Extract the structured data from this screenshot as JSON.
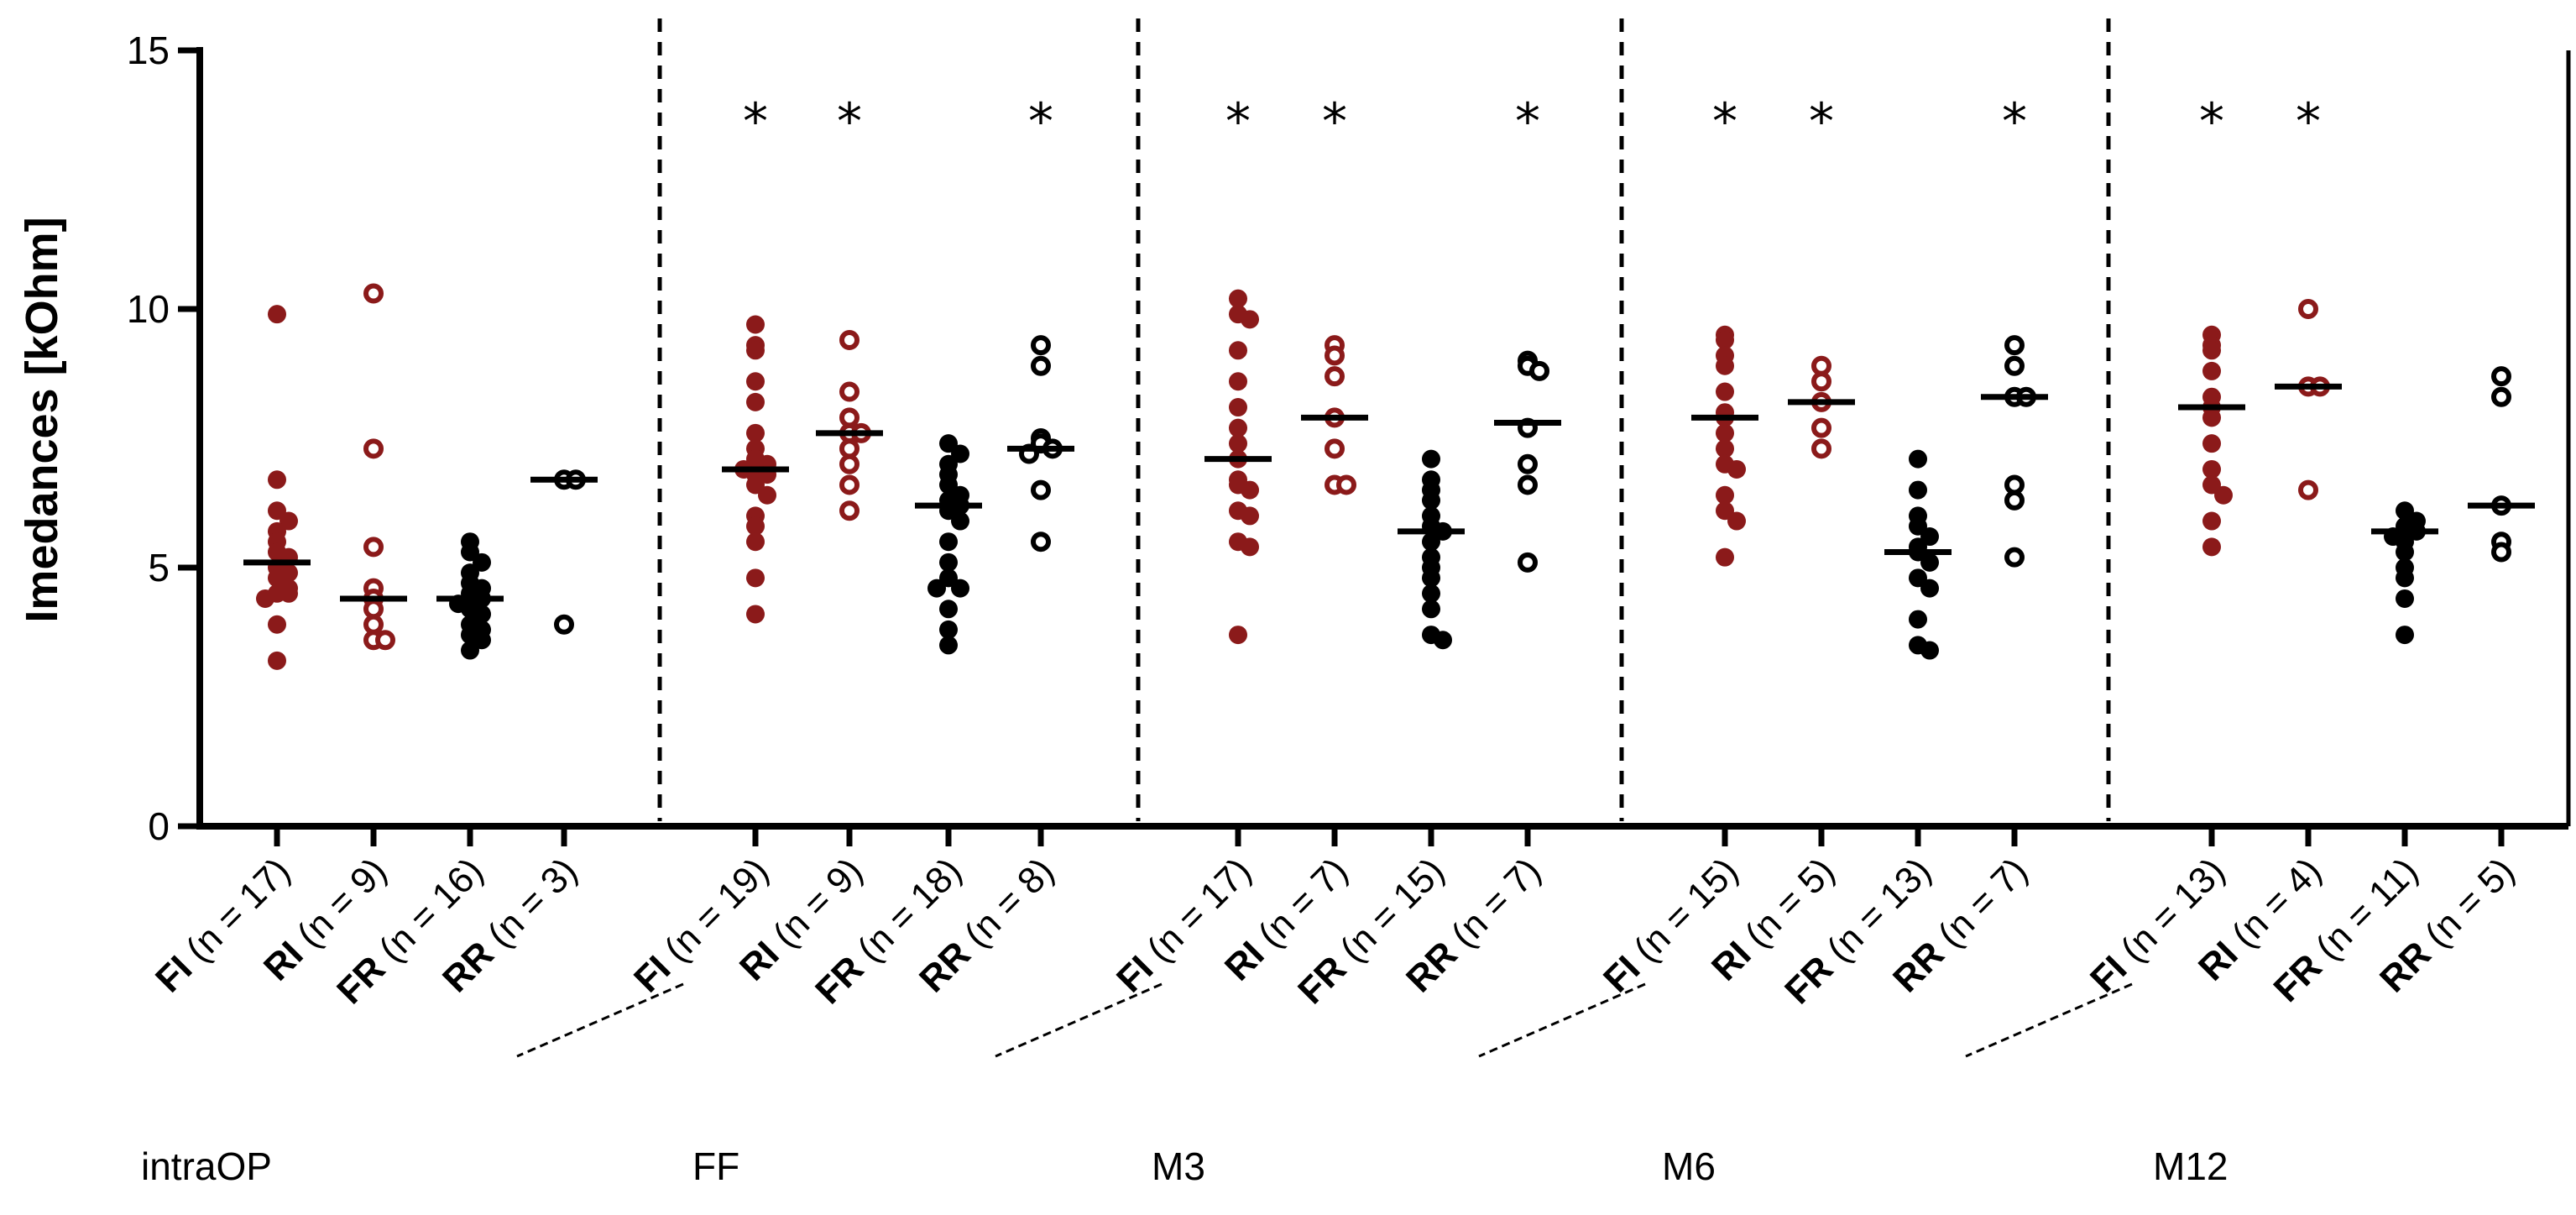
{
  "chart_data": {
    "type": "scatter",
    "ylabel": "Imedances [kOhm]",
    "ylim": [
      0,
      15
    ],
    "yticks": [
      0,
      5,
      10,
      15
    ],
    "colors": {
      "dark_red": "#8B1A1A",
      "black": "#000000"
    },
    "groups": [
      {
        "name": "intraOP",
        "categories": [
          {
            "code": "FI",
            "n_label": " (n = 17)",
            "color": "#8B1A1A",
            "marker": "filled",
            "median": 5.1,
            "star": false,
            "values": [
              9.9,
              6.7,
              6.1,
              5.9,
              5.7,
              5.5,
              5.3,
              5.2,
              5.0,
              4.9,
              4.8,
              4.6,
              4.5,
              4.5,
              4.4,
              3.9,
              3.2
            ]
          },
          {
            "code": "RI",
            "n_label": " (n = 9)",
            "color": "#8B1A1A",
            "marker": "open",
            "median": 4.4,
            "star": false,
            "values": [
              10.3,
              7.3,
              5.4,
              4.6,
              4.4,
              4.2,
              3.9,
              3.6,
              3.6
            ]
          },
          {
            "code": "FR",
            "n_label": " (n = 16)",
            "color": "#000000",
            "marker": "filled",
            "median": 4.4,
            "star": false,
            "values": [
              5.5,
              5.3,
              5.1,
              4.9,
              4.7,
              4.6,
              4.5,
              4.4,
              4.3,
              4.2,
              4.1,
              3.9,
              3.8,
              3.7,
              3.6,
              3.4
            ]
          },
          {
            "code": "RR",
            "n_label": " (n = 3)",
            "color": "#000000",
            "marker": "open",
            "median": 6.7,
            "star": false,
            "values": [
              6.7,
              6.7,
              3.9
            ]
          }
        ]
      },
      {
        "name": "FF",
        "categories": [
          {
            "code": "FI",
            "n_label": " (n = 19)",
            "color": "#8B1A1A",
            "marker": "filled",
            "median": 6.9,
            "star": true,
            "values": [
              9.7,
              9.3,
              9.2,
              8.6,
              8.2,
              7.6,
              7.3,
              7.1,
              7.0,
              6.9,
              6.8,
              6.8,
              6.6,
              6.4,
              6.0,
              5.8,
              5.5,
              4.8,
              4.1
            ]
          },
          {
            "code": "RI",
            "n_label": " (n = 9)",
            "color": "#8B1A1A",
            "marker": "open",
            "median": 7.6,
            "star": true,
            "values": [
              9.4,
              8.4,
              7.9,
              7.6,
              7.6,
              7.3,
              7.0,
              6.6,
              6.1
            ]
          },
          {
            "code": "FR",
            "n_label": " (n = 18)",
            "color": "#000000",
            "marker": "filled",
            "median": 6.2,
            "star": false,
            "values": [
              7.4,
              7.2,
              7.0,
              6.8,
              6.6,
              6.4,
              6.3,
              6.2,
              6.1,
              5.9,
              5.5,
              5.1,
              4.8,
              4.6,
              4.6,
              4.2,
              3.8,
              3.5
            ]
          },
          {
            "code": "RR",
            "n_label": " (n = 8)",
            "color": "#000000",
            "marker": "open",
            "median": 7.3,
            "star": true,
            "values": [
              9.3,
              8.9,
              7.5,
              7.4,
              7.3,
              7.2,
              6.5,
              5.5
            ]
          }
        ]
      },
      {
        "name": "M3",
        "categories": [
          {
            "code": "FI",
            "n_label": " (n = 17)",
            "color": "#8B1A1A",
            "marker": "filled",
            "median": 7.1,
            "star": true,
            "values": [
              10.2,
              9.9,
              9.8,
              9.2,
              8.6,
              8.1,
              7.7,
              7.4,
              7.1,
              6.7,
              6.6,
              6.5,
              6.1,
              6.0,
              5.5,
              5.4,
              3.7
            ]
          },
          {
            "code": "RI",
            "n_label": " (n = 7)",
            "color": "#8B1A1A",
            "marker": "open",
            "median": 7.9,
            "star": true,
            "values": [
              9.3,
              9.1,
              8.7,
              7.9,
              7.3,
              6.6,
              6.6
            ]
          },
          {
            "code": "FR",
            "n_label": " (n = 15)",
            "color": "#000000",
            "marker": "filled",
            "median": 5.7,
            "star": false,
            "values": [
              7.1,
              6.7,
              6.5,
              6.3,
              6.0,
              5.8,
              5.7,
              5.5,
              5.2,
              5.0,
              4.8,
              4.5,
              4.2,
              3.7,
              3.6
            ]
          },
          {
            "code": "RR",
            "n_label": " (n = 7)",
            "color": "#000000",
            "marker": "open",
            "median": 7.8,
            "star": true,
            "values": [
              9.0,
              8.9,
              8.8,
              7.7,
              7.0,
              6.6,
              5.1
            ]
          }
        ]
      },
      {
        "name": "M6",
        "categories": [
          {
            "code": "FI",
            "n_label": " (n = 15)",
            "color": "#8B1A1A",
            "marker": "filled",
            "median": 7.9,
            "star": true,
            "values": [
              9.5,
              9.4,
              9.1,
              8.9,
              8.4,
              8.0,
              7.9,
              7.6,
              7.3,
              7.0,
              6.9,
              6.4,
              6.1,
              5.9,
              5.2
            ]
          },
          {
            "code": "RI",
            "n_label": " (n = 5)",
            "color": "#8B1A1A",
            "marker": "open",
            "median": 8.2,
            "star": true,
            "values": [
              8.9,
              8.6,
              8.2,
              7.7,
              7.3
            ]
          },
          {
            "code": "FR",
            "n_label": " (n = 13)",
            "color": "#000000",
            "marker": "filled",
            "median": 5.3,
            "star": false,
            "values": [
              7.1,
              6.5,
              6.0,
              5.8,
              5.6,
              5.4,
              5.3,
              5.1,
              4.8,
              4.6,
              4.0,
              3.5,
              3.4
            ]
          },
          {
            "code": "RR",
            "n_label": " (n = 7)",
            "color": "#000000",
            "marker": "open",
            "median": 8.3,
            "star": true,
            "values": [
              9.3,
              8.9,
              8.3,
              8.3,
              6.6,
              6.3,
              5.2
            ]
          }
        ]
      },
      {
        "name": "M12",
        "categories": [
          {
            "code": "FI",
            "n_label": " (n = 13)",
            "color": "#8B1A1A",
            "marker": "filled",
            "median": 8.1,
            "star": true,
            "values": [
              9.5,
              9.3,
              9.2,
              8.8,
              8.3,
              8.1,
              7.9,
              7.4,
              6.9,
              6.6,
              6.4,
              5.9,
              5.4
            ]
          },
          {
            "code": "RI",
            "n_label": " (n = 4)",
            "color": "#8B1A1A",
            "marker": "open",
            "median": 8.5,
            "star": true,
            "values": [
              10.0,
              8.5,
              8.5,
              6.5
            ]
          },
          {
            "code": "FR",
            "n_label": " (n = 11)",
            "color": "#000000",
            "marker": "filled",
            "median": 5.7,
            "star": false,
            "values": [
              6.1,
              5.9,
              5.8,
              5.7,
              5.6,
              5.5,
              5.3,
              5.0,
              4.8,
              4.4,
              3.7
            ]
          },
          {
            "code": "RR",
            "n_label": " (n = 5)",
            "color": "#000000",
            "marker": "open",
            "median": 6.2,
            "star": false,
            "values": [
              8.7,
              8.3,
              6.2,
              5.5,
              5.3
            ]
          }
        ]
      }
    ]
  }
}
